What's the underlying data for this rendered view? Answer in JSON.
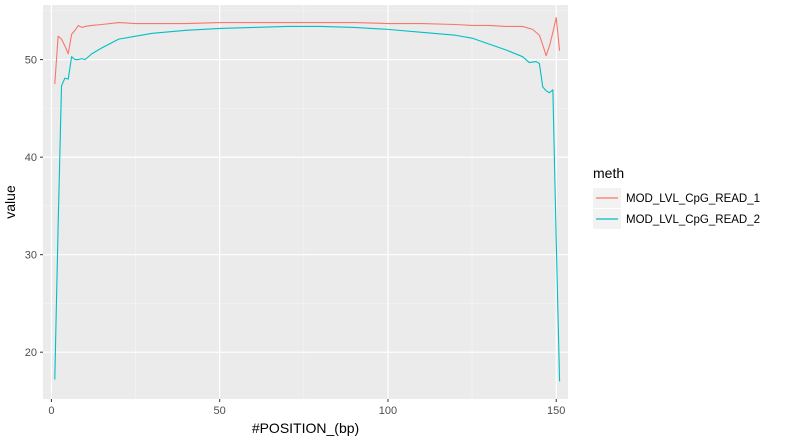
{
  "chart_data": {
    "type": "line",
    "xlabel": "#POSITION_(bp)",
    "ylabel": "value",
    "xlim": [
      -2.5,
      153.5
    ],
    "ylim": [
      15.2,
      55.6
    ],
    "xticks": [
      0,
      50,
      100,
      150
    ],
    "yticks": [
      20,
      30,
      40,
      50
    ],
    "grid": true,
    "legend": {
      "title": "meth",
      "position": "right"
    },
    "series": [
      {
        "name": "MOD_LVL_CpG_READ_1",
        "color": "#F8766D",
        "x": [
          1,
          2,
          3,
          4,
          5,
          6,
          7,
          8,
          9,
          10,
          12,
          15,
          20,
          25,
          30,
          40,
          50,
          60,
          70,
          80,
          90,
          100,
          110,
          120,
          125,
          130,
          135,
          140,
          143,
          145,
          146,
          147,
          148,
          149,
          150,
          151
        ],
        "y": [
          47.5,
          52.4,
          52.1,
          51.4,
          50.6,
          52.6,
          53.0,
          53.5,
          53.3,
          53.4,
          53.5,
          53.6,
          53.8,
          53.7,
          53.7,
          53.7,
          53.8,
          53.8,
          53.8,
          53.8,
          53.8,
          53.7,
          53.7,
          53.6,
          53.5,
          53.5,
          53.4,
          53.4,
          53.1,
          52.5,
          51.5,
          50.4,
          51.4,
          52.8,
          54.3,
          50.9
        ]
      },
      {
        "name": "MOD_LVL_CpG_READ_2",
        "color": "#00BFC4",
        "x": [
          1,
          2,
          3,
          4,
          5,
          6,
          7,
          8,
          9,
          10,
          12,
          15,
          20,
          25,
          30,
          40,
          50,
          60,
          70,
          80,
          90,
          100,
          110,
          120,
          125,
          130,
          135,
          140,
          142,
          144,
          145,
          146,
          147,
          148,
          149,
          150,
          151
        ],
        "y": [
          17.2,
          33.0,
          47.3,
          48.1,
          48.0,
          50.3,
          50.0,
          50.0,
          50.1,
          50.0,
          50.6,
          51.2,
          52.1,
          52.4,
          52.7,
          53.0,
          53.2,
          53.3,
          53.4,
          53.4,
          53.3,
          53.1,
          52.8,
          52.5,
          52.2,
          51.6,
          51.0,
          50.3,
          49.7,
          49.8,
          49.6,
          47.2,
          46.8,
          46.6,
          46.9,
          31.5,
          17.0
        ]
      }
    ]
  }
}
